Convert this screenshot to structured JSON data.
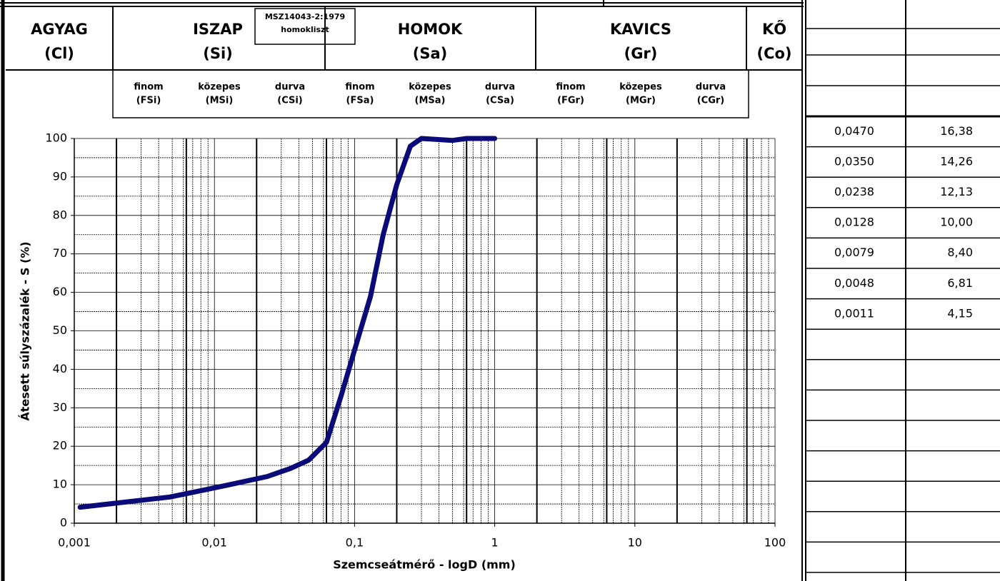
{
  "chart_data": {
    "type": "line",
    "xlog": true,
    "xlabel": "Szemcseátmérő - logD (mm)",
    "ylabel": "Átesett súlyszázalék - S (%)",
    "bands": [
      {
        "name": "AGYAG",
        "code": "(Cl)"
      },
      {
        "name": "ISZAP",
        "code": "(Si)"
      },
      {
        "name": "HOMOK",
        "code": "(Sa)"
      },
      {
        "name": "KAVICS",
        "code": "(Gr)"
      },
      {
        "name": "KŐ",
        "code": "(Co)"
      }
    ],
    "subbands": [
      [
        "finom",
        "(FSi)"
      ],
      [
        "közepes",
        "(MSi)"
      ],
      [
        "durva",
        "(CSi)"
      ],
      [
        "finom",
        "(FSa)"
      ],
      [
        "közepes",
        "(MSa)"
      ],
      [
        "durva",
        "(CSa)"
      ],
      [
        "finom",
        "(FGr)"
      ],
      [
        "közepes",
        "(MGr)"
      ],
      [
        "durva",
        "(CGr)"
      ]
    ],
    "note": [
      "MSZ14043-2:1979",
      "homokliszt"
    ],
    "x": [
      0.0011,
      0.0048,
      0.0079,
      0.0128,
      0.0238,
      0.035,
      0.047,
      0.063,
      0.08,
      0.1,
      0.13,
      0.16,
      0.2,
      0.25,
      0.3,
      0.5,
      0.63,
      1
    ],
    "series": [
      {
        "color": "#0a0a78",
        "values": [
          4.15,
          6.81,
          8.4,
          10.0,
          12.13,
          14.26,
          16.38,
          21,
          33,
          45,
          59,
          75,
          88,
          98,
          100,
          99.5,
          100,
          100
        ]
      }
    ],
    "xlim": [
      0.001,
      100
    ],
    "xticks": [
      {
        "value": 0.001,
        "label": "0,001"
      },
      {
        "value": 0.01,
        "label": "0,01"
      },
      {
        "value": 0.1,
        "label": "0,1"
      },
      1,
      10,
      100
    ],
    "ylim": [
      0,
      100
    ],
    "yticks": [
      0,
      10,
      20,
      30,
      40,
      50,
      60,
      70,
      80,
      90,
      100
    ],
    "grid": true
  },
  "table": {
    "rows": [
      [
        "0,0470",
        "16,38"
      ],
      [
        "0,0350",
        "14,26"
      ],
      [
        "0,0238",
        "12,13"
      ],
      [
        "0,0128",
        "10,00"
      ],
      [
        "0,0079",
        "8,40"
      ],
      [
        "0,0048",
        "6,81"
      ],
      [
        "0,0011",
        "4,15"
      ]
    ]
  }
}
